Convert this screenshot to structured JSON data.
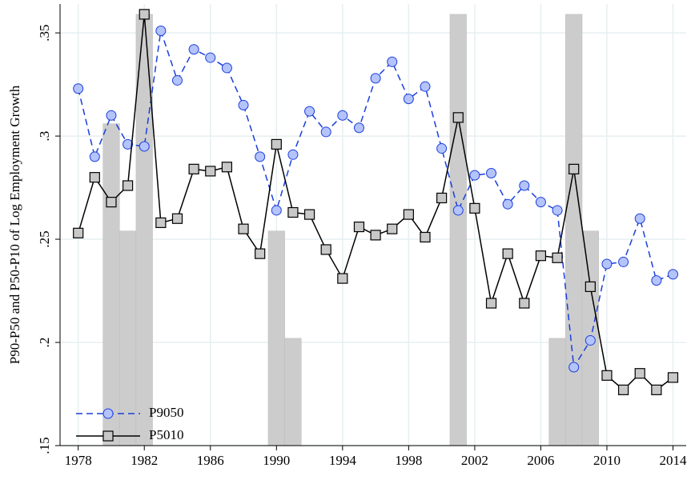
{
  "chart_data": {
    "type": "line",
    "y_label": "P90-P50 and P50-P10 of Log Employment Growth",
    "x": [
      1978,
      1979,
      1980,
      1981,
      1982,
      1983,
      1984,
      1985,
      1986,
      1987,
      1988,
      1989,
      1990,
      1991,
      1992,
      1993,
      1994,
      1995,
      1996,
      1997,
      1998,
      1999,
      2000,
      2001,
      2002,
      2003,
      2004,
      2005,
      2006,
      2007,
      2008,
      2009,
      2010,
      2011,
      2012,
      2013,
      2014
    ],
    "series": [
      {
        "name": "P9050",
        "color": "#1a3fdc",
        "marker_color": "#b4c3fa",
        "dashed": true,
        "marker": "circle",
        "values": [
          0.323,
          0.29,
          0.31,
          0.296,
          0.295,
          0.351,
          0.327,
          0.342,
          0.338,
          0.333,
          0.315,
          0.29,
          0.264,
          0.291,
          0.312,
          0.302,
          0.31,
          0.304,
          0.328,
          0.336,
          0.318,
          0.324,
          0.294,
          0.264,
          0.281,
          0.282,
          0.267,
          0.276,
          0.268,
          0.264,
          0.188,
          0.201,
          0.238,
          0.239,
          0.26,
          0.23,
          0.233
        ]
      },
      {
        "name": "P5010",
        "color": "#000000",
        "marker_color": "#c8c8c8",
        "dashed": false,
        "marker": "square",
        "values": [
          0.253,
          0.28,
          0.268,
          0.276,
          0.359,
          0.258,
          0.26,
          0.284,
          0.283,
          0.285,
          0.255,
          0.243,
          0.296,
          0.263,
          0.262,
          0.245,
          0.231,
          0.256,
          0.252,
          0.255,
          0.262,
          0.251,
          0.27,
          0.309,
          0.265,
          0.219,
          0.243,
          0.219,
          0.242,
          0.241,
          0.284,
          0.227,
          0.184,
          0.177,
          0.185,
          0.177,
          0.183
        ]
      }
    ],
    "bars": {
      "color": "#cccccc",
      "x": [
        1980,
        1981,
        1982,
        1990,
        1991,
        2001,
        2007,
        2008,
        2009
      ],
      "values": [
        0.306,
        0.254,
        0.359,
        0.254,
        0.202,
        0.359,
        0.202,
        0.359,
        0.254
      ]
    },
    "xlim": [
      1976.9,
      2014.8
    ],
    "ylim": [
      0.15,
      0.364
    ],
    "xticks": [
      1978,
      1982,
      1986,
      1990,
      1994,
      1998,
      2002,
      2006,
      2010,
      2014
    ],
    "yticks": [
      {
        "value": 0.15,
        "label": ".15"
      },
      {
        "value": 0.2,
        "label": ".2"
      },
      {
        "value": 0.25,
        "label": ".25"
      },
      {
        "value": 0.3,
        "label": ".3"
      },
      {
        "value": 0.35,
        "label": ".35"
      }
    ],
    "grid": true,
    "legend": "lower-left"
  }
}
